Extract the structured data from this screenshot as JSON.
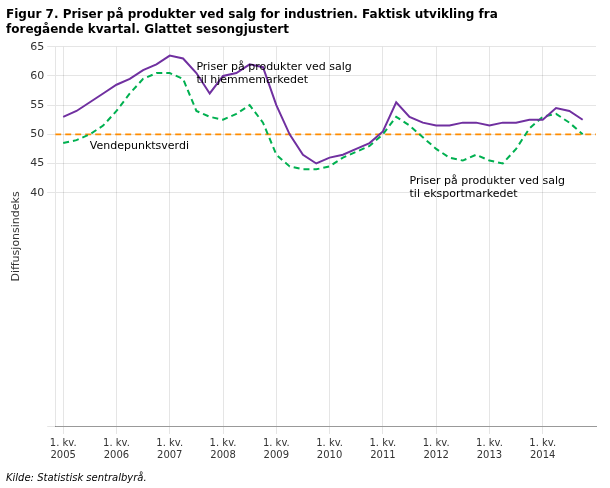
{
  "chart_data": {
    "type": "line",
    "title": "Figur 7. Priser på produkter ved salg for industrien. Faktisk utvikling fra\nforegående kvartal. Glattet sesongjustert",
    "ylabel": "Diffusjonsindeks",
    "source": "Kilde: Statistisk sentralbyrå.",
    "xlim": [
      2004.85,
      2015.0
    ],
    "xticks": [
      {
        "value": 2005,
        "label": "1. kv.\n2005"
      },
      {
        "value": 2006,
        "label": "1. kv.\n2006"
      },
      {
        "value": 2007,
        "label": "1. kv.\n2007"
      },
      {
        "value": 2008,
        "label": "1. kv.\n2008"
      },
      {
        "value": 2009,
        "label": "1. kv.\n2009"
      },
      {
        "value": 2010,
        "label": "1. kv.\n2010"
      },
      {
        "value": 2011,
        "label": "1. kv.\n2011"
      },
      {
        "value": 2012,
        "label": "1. kv.\n2012"
      },
      {
        "value": 2013,
        "label": "1. kv.\n2013"
      },
      {
        "value": 2014,
        "label": "1. kv.\n2014"
      }
    ],
    "ylim": [
      0,
      65
    ],
    "yticks": [
      {
        "value": 0,
        "label": null
      },
      40,
      45,
      50,
      55,
      60,
      65
    ],
    "grid": true,
    "x": [
      2005.0,
      2005.25,
      2005.5,
      2005.75,
      2006.0,
      2006.25,
      2006.5,
      2006.75,
      2007.0,
      2007.25,
      2007.5,
      2007.75,
      2008.0,
      2008.25,
      2008.5,
      2008.75,
      2009.0,
      2009.25,
      2009.5,
      2009.75,
      2010.0,
      2010.25,
      2010.5,
      2010.75,
      2011.0,
      2011.25,
      2011.5,
      2011.75,
      2012.0,
      2012.25,
      2012.5,
      2012.75,
      2013.0,
      2013.25,
      2013.5,
      2013.75,
      2014.0,
      2014.25,
      2014.5,
      2014.75
    ],
    "series": [
      {
        "color": "#7030A0",
        "line_style": "solid",
        "values": [
          53.0,
          54.0,
          55.5,
          57.0,
          58.5,
          59.5,
          61.0,
          62.0,
          63.5,
          63.0,
          60.5,
          57.0,
          60.0,
          60.5,
          62.0,
          61.5,
          55.0,
          50.0,
          46.5,
          45.0,
          46.0,
          46.5,
          47.5,
          48.5,
          50.5,
          55.5,
          53.0,
          52.0,
          51.5,
          51.5,
          52.0,
          52.0,
          51.5,
          52.0,
          52.0,
          52.5,
          52.5,
          54.5,
          54.0,
          52.5
        ]
      },
      {
        "color": "#00B050",
        "line_style": "dashed",
        "values": [
          48.5,
          49.0,
          50.0,
          51.5,
          54.0,
          57.0,
          59.5,
          60.5,
          60.5,
          59.5,
          54.0,
          53.0,
          52.5,
          53.5,
          55.0,
          52.0,
          46.5,
          44.5,
          44.0,
          44.0,
          44.5,
          46.0,
          47.0,
          48.0,
          50.0,
          53.0,
          51.5,
          49.5,
          47.5,
          46.0,
          45.5,
          46.5,
          45.5,
          45.0,
          47.5,
          51.0,
          53.0,
          53.5,
          52.0,
          50.0
        ]
      }
    ],
    "hlines": [
      {
        "value": 50,
        "color": "#FF8C00",
        "line_style": "dashed"
      }
    ],
    "annotations": [
      {
        "text": "Priser på produkter ved salg\ntil hjemmemarkedet",
        "x": 2007.5,
        "y": 62.5
      },
      {
        "text": "Vendepunktsverdi",
        "x": 2005.5,
        "y": 49.0
      },
      {
        "text": "Priser på produkter ved salg\ntil eksportmarkedet",
        "x": 2011.5,
        "y": 43.0
      }
    ]
  }
}
